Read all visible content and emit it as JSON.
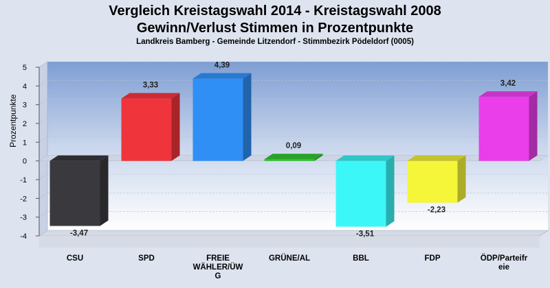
{
  "chart_data": {
    "type": "bar",
    "title": "Vergleich Kreistagswahl 2014 - Kreistagswahl 2008",
    "subtitle": "Gewinn/Verlust Stimmen in Prozentpunkte",
    "caption": "Landkreis Bamberg - Gemeinde Litzendorf - Stimmbezirk Pödeldorf (0005)",
    "xlabel": "",
    "ylabel": "Prozentpunkte",
    "ylim": [
      -4,
      5
    ],
    "yticks": [
      "5",
      "4",
      "3",
      "2",
      "1",
      "0",
      "-1",
      "-2",
      "-3",
      "-4"
    ],
    "categories": [
      [
        "CSU"
      ],
      [
        "SPD"
      ],
      [
        "FREIE",
        "WÄHLER/ÜW",
        "G"
      ],
      [
        "GRÜNE/AL"
      ],
      [
        "BBL"
      ],
      [
        "FDP"
      ],
      [
        "ÖDP/Parteifr",
        "eie"
      ]
    ],
    "values": [
      -3.47,
      3.33,
      4.39,
      0.09,
      -3.51,
      -2.23,
      3.42
    ],
    "value_labels": [
      "-3,47",
      "3,33",
      "4,39",
      "0,09",
      "-3,51",
      "-2,23",
      "3,42"
    ],
    "colors": [
      "#3a3a3e",
      "#f0343b",
      "#2f8ff5",
      "#2ec02e",
      "#3cf7f7",
      "#f5f53a",
      "#e93ee9"
    ],
    "grid": true,
    "legend": "none"
  }
}
